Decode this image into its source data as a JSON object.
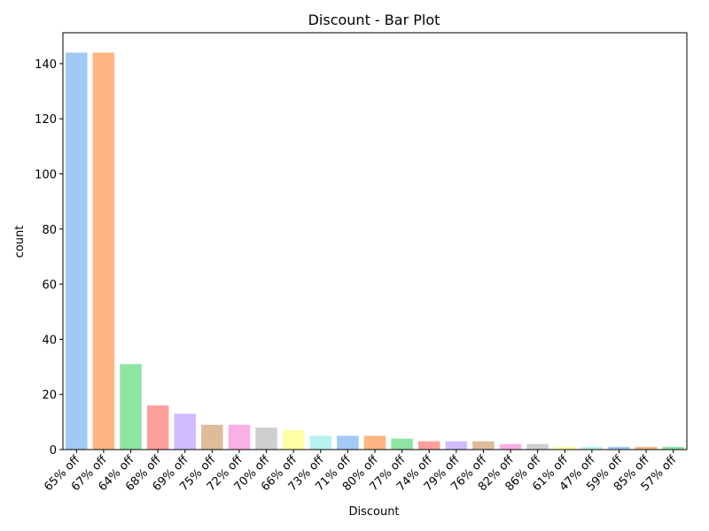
{
  "chart_data": {
    "type": "bar",
    "title": "Discount - Bar Plot",
    "xlabel": "Discount",
    "ylabel": "count",
    "categories": [
      "65% off",
      "67% off",
      "64% off",
      "68% off",
      "69% off",
      "75% off",
      "72% off",
      "70% off",
      "66% off",
      "73% off",
      "71% off",
      "80% off",
      "77% off",
      "74% off",
      "79% off",
      "76% off",
      "82% off",
      "86% off",
      "61% off",
      "47% off",
      "59% off",
      "85% off",
      "57% off"
    ],
    "values": [
      144,
      144,
      31,
      16,
      13,
      9,
      9,
      8,
      7,
      5,
      5,
      5,
      4,
      3,
      3,
      3,
      2,
      2,
      1,
      1,
      1,
      1,
      1
    ],
    "colors": [
      "#a1c9f4",
      "#ffb482",
      "#8de5a1",
      "#ff9f9b",
      "#d0bbff",
      "#debb9b",
      "#fab0e4",
      "#cfcfcf",
      "#fffea3",
      "#b9f2f0",
      "#a1c9f4",
      "#ffb482",
      "#8de5a1",
      "#ff9f9b",
      "#d0bbff",
      "#debb9b",
      "#fab0e4",
      "#cfcfcf",
      "#fffea3",
      "#b9f2f0",
      "#a1c9f4",
      "#ffb482",
      "#8de5a1"
    ],
    "ylim": [
      0,
      151.2
    ],
    "yticks": [
      0,
      20,
      40,
      60,
      80,
      100,
      120,
      140
    ],
    "grid": false,
    "legend": "none"
  }
}
